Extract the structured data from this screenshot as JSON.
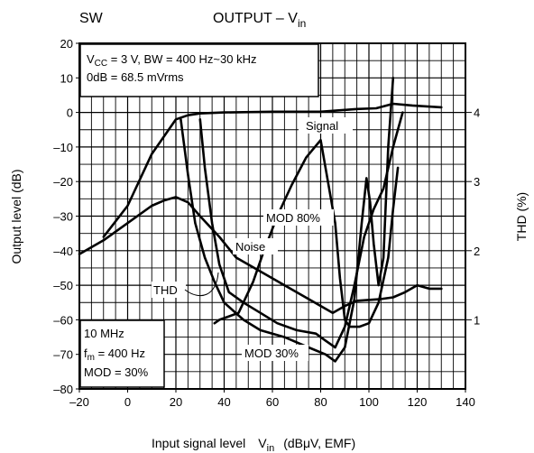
{
  "header": {
    "left_label": "SW",
    "title": "OUTPUT – V",
    "title_sub": "in"
  },
  "axes": {
    "xlabel": "Input signal level",
    "xvar": "V",
    "xvar_sub": "in",
    "xunit": "(dBμV, EMF)",
    "ylabel_left": "Output level   (dB)",
    "ylabel_right": "THD   (%)"
  },
  "notes": {
    "top_line1_pre": "V",
    "top_line1_sub": "CC",
    "top_line1_post": " = 3 V, BW = 400 Hz~30 kHz",
    "top_line2": "0dB = 68.5 mVrms",
    "bottom_line1": "10 MHz",
    "bottom_line2_pre": "f",
    "bottom_line2_sub": "m",
    "bottom_line2_post": " = 400 Hz",
    "bottom_line3": "MOD = 30%"
  },
  "curve_labels": {
    "signal": "Signal",
    "mod80": "MOD 80%",
    "noise": "Noise",
    "thd": "THD",
    "mod30": "MOD 30%"
  },
  "chart_data": {
    "type": "line",
    "xlim": [
      -20,
      140
    ],
    "ylim_left": [
      -80,
      20
    ],
    "ylim_right": [
      0,
      5
    ],
    "x_ticks": [
      -20,
      0,
      20,
      40,
      60,
      80,
      100,
      120,
      140
    ],
    "y_ticks_left": [
      20,
      10,
      0,
      -10,
      -20,
      -30,
      -40,
      -50,
      -60,
      -70,
      -80
    ],
    "y_ticks_right": [
      4,
      3,
      2,
      1
    ],
    "grid": true,
    "series": [
      {
        "name": "Signal",
        "axis": "left",
        "points": [
          [
            -10,
            -36
          ],
          [
            0,
            -27
          ],
          [
            10,
            -12
          ],
          [
            16,
            -6
          ],
          [
            20,
            -2
          ],
          [
            25,
            -0.8
          ],
          [
            30,
            -0.3
          ],
          [
            40,
            0
          ],
          [
            60,
            0.2
          ],
          [
            80,
            0.2
          ],
          [
            95,
            1
          ],
          [
            103,
            1.2
          ],
          [
            110,
            2.5
          ],
          [
            118,
            2
          ],
          [
            130,
            1.5
          ]
        ]
      },
      {
        "name": "Noise",
        "axis": "left",
        "points": [
          [
            -20,
            -41
          ],
          [
            -10,
            -37
          ],
          [
            0,
            -32
          ],
          [
            10,
            -27
          ],
          [
            15,
            -25.5
          ],
          [
            20,
            -24.5
          ],
          [
            25,
            -26
          ],
          [
            30,
            -30
          ],
          [
            38,
            -36
          ],
          [
            45,
            -42
          ],
          [
            55,
            -46
          ],
          [
            65,
            -50
          ],
          [
            75,
            -54
          ],
          [
            85,
            -58
          ],
          [
            90,
            -56
          ],
          [
            95,
            -54.5
          ],
          [
            105,
            -54
          ],
          [
            110,
            -53.5
          ],
          [
            115,
            -52
          ],
          [
            120,
            -50
          ],
          [
            125,
            -51
          ],
          [
            130,
            -51
          ]
        ]
      },
      {
        "name": "MOD 80%",
        "axis": "right",
        "points": [
          [
            22,
            3.9
          ],
          [
            25,
            3.1
          ],
          [
            28,
            2.4
          ],
          [
            32,
            1.9
          ],
          [
            36,
            1.55
          ],
          [
            40,
            1.25
          ],
          [
            48,
            1.0
          ],
          [
            55,
            0.85
          ],
          [
            65,
            0.75
          ],
          [
            75,
            0.6
          ],
          [
            82,
            0.5
          ],
          [
            86,
            0.4
          ],
          [
            90,
            0.6
          ],
          [
            94,
            1.3
          ],
          [
            97,
            2.4
          ],
          [
            99,
            3.05
          ],
          [
            100.5,
            2.7
          ],
          [
            102,
            2.1
          ],
          [
            104,
            1.5
          ],
          [
            106,
            1.9
          ],
          [
            108,
            3.5
          ],
          [
            110,
            4.5
          ]
        ]
      },
      {
        "name": "MOD 30%",
        "axis": "right",
        "points": [
          [
            30,
            3.9
          ],
          [
            32,
            3.2
          ],
          [
            35,
            2.4
          ],
          [
            38,
            1.8
          ],
          [
            42,
            1.4
          ],
          [
            48,
            1.25
          ],
          [
            55,
            1.1
          ],
          [
            62,
            0.95
          ],
          [
            70,
            0.85
          ],
          [
            78,
            0.8
          ],
          [
            82,
            0.7
          ],
          [
            86,
            0.6
          ],
          [
            90,
            0.9
          ],
          [
            94,
            1.5
          ],
          [
            98,
            2.2
          ],
          [
            102,
            2.6
          ],
          [
            106,
            2.9
          ],
          [
            110,
            3.5
          ],
          [
            114,
            4.0
          ]
        ]
      },
      {
        "name": "THD",
        "axis": "right",
        "points": [
          [
            36,
            0.95
          ],
          [
            38,
            1.0
          ],
          [
            42,
            1.05
          ],
          [
            46,
            1.1
          ],
          [
            52,
            1.55
          ],
          [
            56,
            1.95
          ],
          [
            62,
            2.5
          ],
          [
            68,
            2.95
          ],
          [
            74,
            3.35
          ],
          [
            80,
            3.6
          ],
          [
            86,
            2.4
          ],
          [
            88,
            1.6
          ],
          [
            90,
            1.0
          ],
          [
            92,
            0.9
          ],
          [
            96,
            0.9
          ],
          [
            100,
            0.95
          ],
          [
            104,
            1.25
          ],
          [
            108,
            1.9
          ],
          [
            110,
            2.6
          ],
          [
            112,
            3.2
          ]
        ]
      }
    ]
  }
}
